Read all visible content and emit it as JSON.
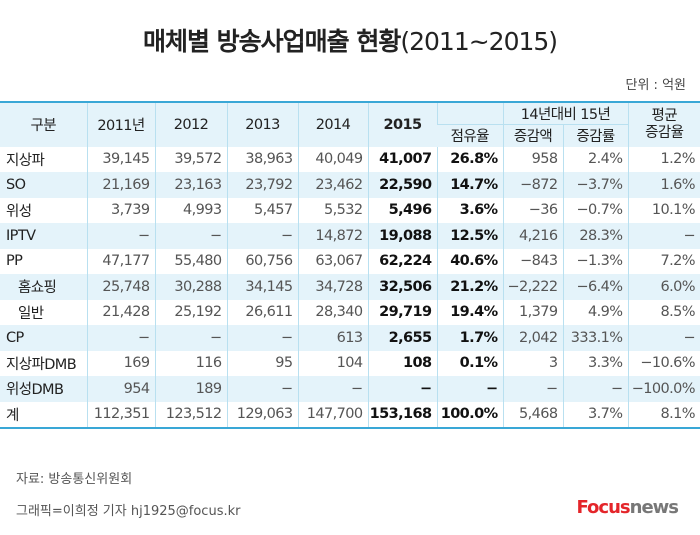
{
  "title": "매체별 방송사업매출 현황",
  "title_years": "(2011~2015)",
  "unit": "단위 : 억원",
  "header": {
    "category": "구분",
    "y2011": "2011년",
    "y2012": "2012",
    "y2013": "2013",
    "y2014": "2014",
    "y2015": "2015",
    "share": "점유율",
    "compare": "14년대비 15년",
    "diff_amount": "증감액",
    "diff_rate": "증감률",
    "avg_rate": "평균\n증감율"
  },
  "rows": [
    {
      "name": "지상파",
      "v": [
        "39,145",
        "39,572",
        "38,963",
        "40,049",
        "41,007",
        "26.8%",
        "958",
        "2.4%",
        "1.2%"
      ]
    },
    {
      "name": "SO",
      "v": [
        "21,169",
        "23,163",
        "23,792",
        "23,462",
        "22,590",
        "14.7%",
        "−872",
        "−3.7%",
        "1.6%"
      ]
    },
    {
      "name": "위성",
      "v": [
        "3,739",
        "4,993",
        "5,457",
        "5,532",
        "5,496",
        "3.6%",
        "−36",
        "−0.7%",
        "10.1%"
      ]
    },
    {
      "name": "IPTV",
      "v": [
        "−",
        "−",
        "−",
        "14,872",
        "19,088",
        "12.5%",
        "4,216",
        "28.3%",
        "−"
      ]
    },
    {
      "name": "PP",
      "v": [
        "47,177",
        "55,480",
        "60,756",
        "63,067",
        "62,224",
        "40.6%",
        "−843",
        "−1.3%",
        "7.2%"
      ]
    },
    {
      "name": "홈쇼핑",
      "sub": true,
      "v": [
        "25,748",
        "30,288",
        "34,145",
        "34,728",
        "32,506",
        "21.2%",
        "−2,222",
        "−6.4%",
        "6.0%"
      ]
    },
    {
      "name": "일반",
      "sub": true,
      "v": [
        "21,428",
        "25,192",
        "26,611",
        "28,340",
        "29,719",
        "19.4%",
        "1,379",
        "4.9%",
        "8.5%"
      ]
    },
    {
      "name": "CP",
      "v": [
        "−",
        "−",
        "−",
        "613",
        "2,655",
        "1.7%",
        "2,042",
        "333.1%",
        "−"
      ]
    },
    {
      "name": "지상파DMB",
      "v": [
        "169",
        "116",
        "95",
        "104",
        "108",
        "0.1%",
        "3",
        "3.3%",
        "−10.6%"
      ]
    },
    {
      "name": "위성DMB",
      "v": [
        "954",
        "189",
        "−",
        "−",
        "−",
        "−",
        "−",
        "−",
        "−100.0%"
      ]
    },
    {
      "name": "계",
      "v": [
        "112,351",
        "123,512",
        "129,063",
        "147,700",
        "153,168",
        "100.0%",
        "5,468",
        "3.7%",
        "8.1%"
      ]
    }
  ],
  "source": "자료: 방송통신위원회",
  "credit": "그래픽=이희정 기자 hj1925@focus.kr",
  "logo": {
    "focus": "Focus",
    "news": "news"
  },
  "colors": {
    "accent": "#39a7d6",
    "row_alt": "#e4f3fa",
    "logo_red": "#e4252a"
  }
}
